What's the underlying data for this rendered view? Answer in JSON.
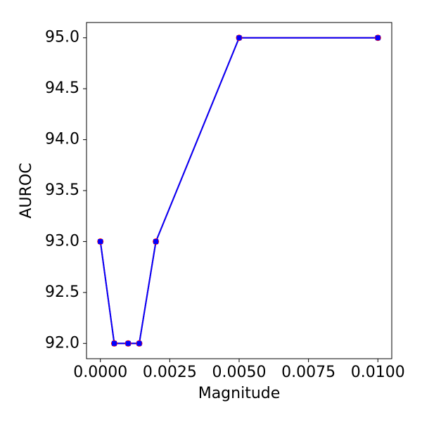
{
  "chart_data": {
    "type": "line",
    "xlabel": "Magnitude",
    "ylabel": "AUROC",
    "x": [
      0,
      0.0005,
      0.001,
      0.0014,
      0.002,
      0.005,
      0.01
    ],
    "series": [
      {
        "color": "#ff0000",
        "marker": "circle",
        "values": [
          93,
          92,
          92,
          92,
          93,
          95,
          95
        ]
      },
      {
        "color": "#0000ff",
        "marker": "square",
        "values": [
          93,
          92,
          92,
          92,
          93,
          95,
          95
        ]
      }
    ],
    "xlim": [
      -0.0005,
      0.0105
    ],
    "ylim": [
      91.85,
      95.15
    ],
    "xticks": [
      {
        "value": 0,
        "label": "0.0000"
      },
      {
        "value": 0.0025,
        "label": "0.0025"
      },
      {
        "value": 0.005,
        "label": "0.0050"
      },
      {
        "value": 0.0075,
        "label": "0.0075"
      },
      {
        "value": 0.01,
        "label": "0.0100"
      }
    ],
    "yticks": [
      {
        "value": 92,
        "label": "92.0"
      },
      {
        "value": 92.5,
        "label": "92.5"
      },
      {
        "value": 93,
        "label": "93.0"
      },
      {
        "value": 93.5,
        "label": "93.5"
      },
      {
        "value": 94,
        "label": "94.0"
      },
      {
        "value": 94.5,
        "label": "94.5"
      },
      {
        "value": 95,
        "label": "95.0"
      }
    ],
    "grid": false
  }
}
